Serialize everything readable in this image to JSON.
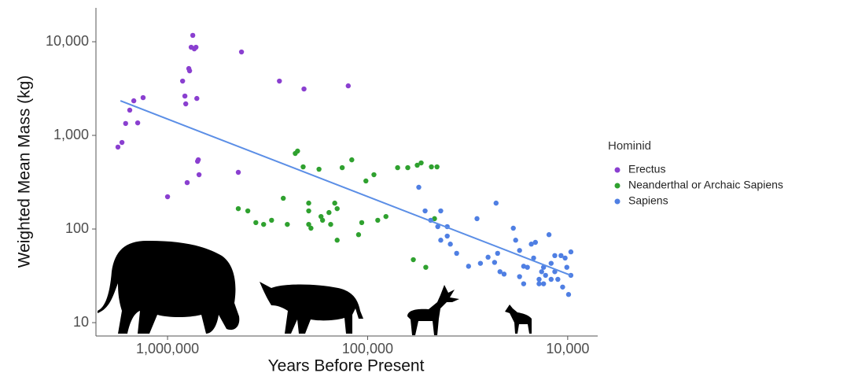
{
  "chart_data": {
    "type": "scatter",
    "x_label": "Years Before Present",
    "y_label": "Weighted Mean Mass (kg)",
    "xlog": true,
    "ylog": true,
    "xlim": [
      2280000,
      7080
    ],
    "ylim": [
      7.2,
      23000
    ],
    "xticks": [
      {
        "value": 1000000,
        "label": "1,000,000"
      },
      {
        "value": 100000,
        "label": "100,000"
      },
      {
        "value": 10000,
        "label": "10,000"
      }
    ],
    "yticks": [
      10,
      100,
      {
        "value": 1000,
        "label": "1,000"
      },
      {
        "value": 10000,
        "label": "10,000"
      }
    ],
    "legend_title": "Hominid",
    "legend_position": "right",
    "series": [
      {
        "name": "Erectus",
        "color": "#8a3fd0",
        "x": [
          1770000,
          1690000,
          1620000,
          1545000,
          1475000,
          1410000,
          1325000,
          1000000,
          841000,
          819000,
          811000,
          798000,
          783000,
          776000,
          762000,
          748000,
          735000,
          721000,
          714000,
          708000,
          702000,
          696000,
          427000,
          443000,
          276000,
          208000,
          125000
        ],
        "values": [
          750,
          840,
          1340,
          1860,
          2340,
          1360,
          2530,
          221,
          3800,
          2630,
          2170,
          313,
          5170,
          4890,
          8730,
          11700,
          8400,
          8730,
          2480,
          528,
          549,
          380,
          7780,
          403,
          3800,
          3130,
          3380
        ]
      },
      {
        "name": "Neanderthal or Archaic Sapiens",
        "color": "#2fa12f",
        "x": [
          443000,
          397000,
          362000,
          331000,
          302000,
          264000,
          230000,
          224000,
          210000,
          197000,
          197000,
          197000,
          175000,
          171000,
          168000,
          153000,
          146000,
          142000,
          134000,
          120000,
          111000,
          102000,
          93000,
          81000,
          70800,
          63000,
          59100,
          56500,
          54000,
          51200,
          48000,
          45000,
          46300,
          107000,
          142000,
          89000,
          252000,
          192000,
          156000
        ],
        "values": [
          165,
          156,
          117,
          112,
          124,
          213,
          641,
          680,
          461,
          189,
          156,
          112,
          435,
          136,
          124,
          112,
          189,
          165,
          452,
          548,
          87,
          326,
          380,
          136,
          452,
          452,
          47,
          480,
          508,
          39,
          461,
          461,
          129,
          117,
          76,
          124,
          112,
          102,
          150
        ]
      },
      {
        "name": "Sapiens",
        "color": "#4f7fe3",
        "x": [
          55500,
          51600,
          48400,
          44600,
          43100,
          40000,
          38600,
          35900,
          31300,
          28400,
          27300,
          25000,
          22800,
          22400,
          21800,
          20800,
          18700,
          18200,
          17400,
          16600,
          15900,
          15200,
          14500,
          13900,
          13500,
          13200,
          12900,
          12400,
          12100,
          11600,
          11200,
          10800,
          10600,
          10300,
          10100,
          9900,
          9640,
          9640,
          11600,
          12100,
          13900,
          13200,
          23200,
          17400,
          16600,
          14800,
          40000,
          43100
        ],
        "values": [
          279,
          156,
          124,
          106,
          76,
          84,
          69,
          55,
          40,
          129,
          43,
          50,
          189,
          55,
          35,
          33,
          102,
          76,
          59,
          40,
          39,
          69,
          72,
          29,
          35,
          26,
          32,
          87,
          43,
          35,
          29,
          52,
          24,
          49,
          39,
          20,
          57,
          32,
          52,
          29,
          26,
          39,
          44,
          31,
          26,
          49,
          106,
          156
        ]
      }
    ],
    "trendline": {
      "color": "#5b8ee6",
      "x": [
        1720000,
        9640
      ],
      "values": [
        2340,
        32
      ]
    }
  }
}
